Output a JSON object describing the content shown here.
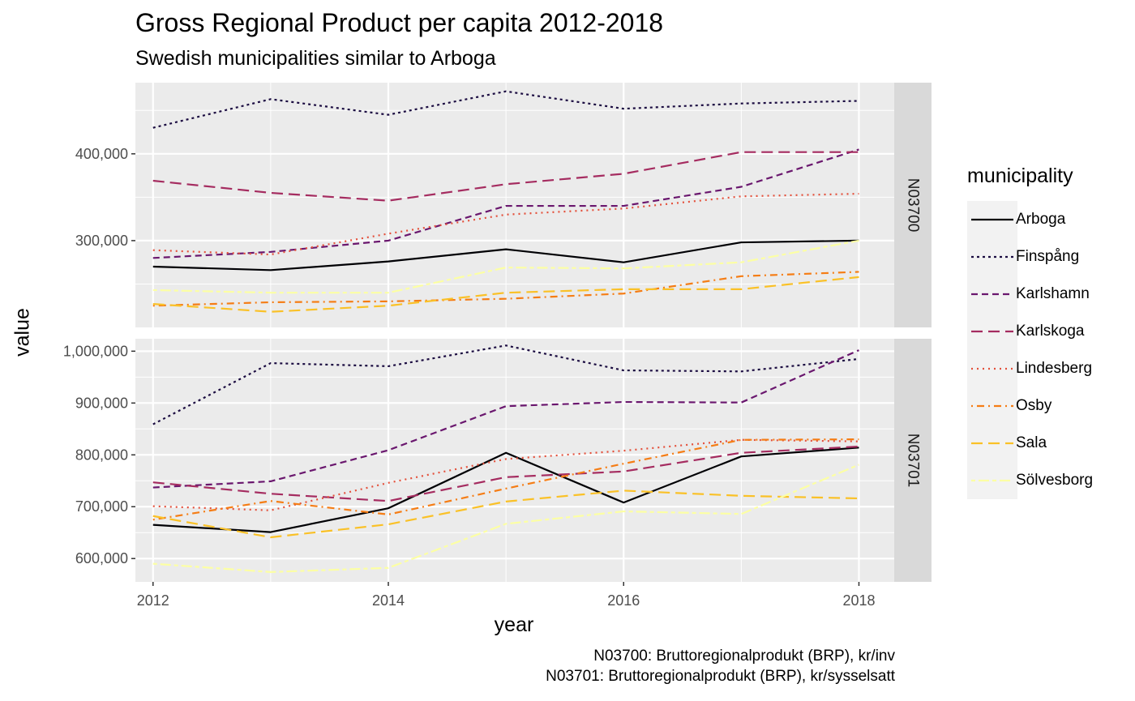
{
  "title": "Gross Regional Product per capita 2012-2018",
  "subtitle": "Swedish municipalities similar to Arboga",
  "xlabel": "year",
  "ylabel": "value",
  "captions": [
    "N03700: Bruttoregionalprodukt (BRP), kr/inv",
    "N03701: Bruttoregionalprodukt (BRP), kr/sysselsatt"
  ],
  "legend": {
    "title": "municipality",
    "items": [
      {
        "label": "Arboga",
        "color": "#000004",
        "dash": "solid"
      },
      {
        "label": "Finspång",
        "color": "#1B0C41",
        "dash": "dotted"
      },
      {
        "label": "Karlshamn",
        "color": "#6A176E",
        "dash": "dashed"
      },
      {
        "label": "Karlskoga",
        "color": "#A52C60",
        "dash": "longdash"
      },
      {
        "label": "Lindesberg",
        "color": "#E4503B",
        "dash": "dotted-fine"
      },
      {
        "label": "Osby",
        "color": "#F57D15",
        "dash": "dotdash"
      },
      {
        "label": "Sala",
        "color": "#FAC127",
        "dash": "longdash"
      },
      {
        "label": "Sölvesborg",
        "color": "#FCFFA4",
        "dash": "twodash"
      }
    ]
  },
  "chart_data": [
    {
      "type": "line",
      "facet": "N03700",
      "x": [
        2012,
        2013,
        2014,
        2015,
        2016,
        2017,
        2018
      ],
      "xticks": [
        "2012",
        "2014",
        "2016",
        "2018"
      ],
      "ylim": [
        200000,
        482000
      ],
      "yticks": [
        "300,000",
        "400,000"
      ],
      "grid": true,
      "series": [
        {
          "name": "Arboga",
          "values": [
            270000,
            266000,
            276000,
            290000,
            275000,
            298000,
            300000
          ]
        },
        {
          "name": "Finspång",
          "values": [
            430000,
            463000,
            445000,
            472000,
            452000,
            458000,
            461000
          ]
        },
        {
          "name": "Karlshamn",
          "values": [
            280000,
            287000,
            300000,
            340000,
            340000,
            362000,
            405000
          ]
        },
        {
          "name": "Karlskoga",
          "values": [
            369000,
            355000,
            346000,
            365000,
            377000,
            402000,
            402000
          ]
        },
        {
          "name": "Lindesberg",
          "values": [
            289000,
            284000,
            308000,
            330000,
            337000,
            351000,
            354000
          ]
        },
        {
          "name": "Osby",
          "values": [
            225000,
            229000,
            230000,
            233000,
            239000,
            259000,
            264000
          ]
        },
        {
          "name": "Sala",
          "values": [
            227000,
            218000,
            225000,
            240000,
            244000,
            244000,
            258000
          ]
        },
        {
          "name": "Sölvesborg",
          "values": [
            243000,
            240000,
            240000,
            269000,
            268000,
            275000,
            300000
          ]
        }
      ]
    },
    {
      "type": "line",
      "facet": "N03701",
      "x": [
        2012,
        2013,
        2014,
        2015,
        2016,
        2017,
        2018
      ],
      "xticks": [
        "2012",
        "2014",
        "2016",
        "2018"
      ],
      "ylim": [
        555000,
        1024000
      ],
      "yticks": [
        "600,000",
        "700,000",
        "800,000",
        "900,000",
        "1,000,000"
      ],
      "grid": true,
      "series": [
        {
          "name": "Arboga",
          "values": [
            665000,
            651000,
            697000,
            804000,
            708000,
            797000,
            814000
          ]
        },
        {
          "name": "Finspång",
          "values": [
            859000,
            977000,
            971000,
            1011000,
            963000,
            961000,
            985000
          ]
        },
        {
          "name": "Karlshamn",
          "values": [
            737000,
            749000,
            809000,
            894000,
            902000,
            901000,
            1002000
          ]
        },
        {
          "name": "Karlskoga",
          "values": [
            747000,
            725000,
            711000,
            757000,
            768000,
            804000,
            816000
          ]
        },
        {
          "name": "Lindesberg",
          "values": [
            701000,
            693000,
            746000,
            792000,
            808000,
            829000,
            826000
          ]
        },
        {
          "name": "Osby",
          "values": [
            675000,
            711000,
            685000,
            735000,
            783000,
            829000,
            830000
          ]
        },
        {
          "name": "Sala",
          "values": [
            682000,
            641000,
            666000,
            710000,
            731000,
            721000,
            716000
          ]
        },
        {
          "name": "Sölvesborg",
          "values": [
            590000,
            574000,
            582000,
            667000,
            691000,
            686000,
            781000
          ]
        }
      ]
    }
  ]
}
